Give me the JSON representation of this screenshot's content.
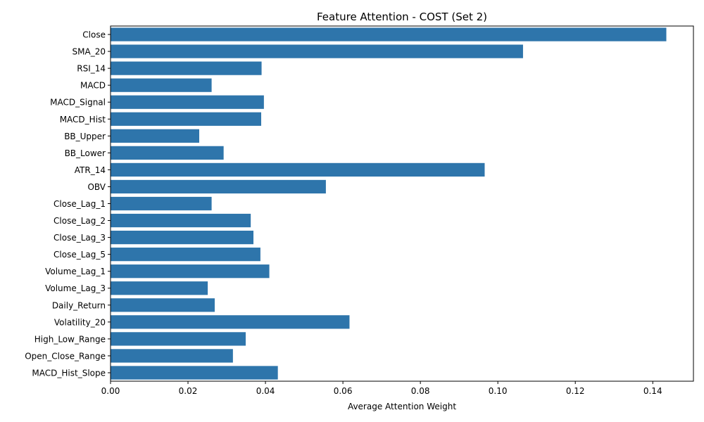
{
  "chart_data": {
    "type": "bar",
    "orientation": "horizontal",
    "title": "Feature Attention - COST (Set 2)",
    "xlabel": "Average Attention Weight",
    "ylabel": "",
    "xlim": [
      0,
      0.1505
    ],
    "xticks": [
      0.0,
      0.02,
      0.04,
      0.06,
      0.08,
      0.1,
      0.12,
      0.14
    ],
    "xtick_labels": [
      "0.00",
      "0.02",
      "0.04",
      "0.06",
      "0.08",
      "0.10",
      "0.12",
      "0.14"
    ],
    "grid": false,
    "bar_color": "#2e75ab",
    "categories": [
      "Close",
      "SMA_20",
      "RSI_14",
      "MACD",
      "MACD_Signal",
      "MACD_Hist",
      "BB_Upper",
      "BB_Lower",
      "ATR_14",
      "OBV",
      "Close_Lag_1",
      "Close_Lag_2",
      "Close_Lag_3",
      "Close_Lag_5",
      "Volume_Lag_1",
      "Volume_Lag_3",
      "Daily_Return",
      "Volatility_20",
      "High_Low_Range",
      "Open_Close_Range",
      "MACD_Hist_Slope"
    ],
    "values": [
      0.1435,
      0.1065,
      0.039,
      0.0261,
      0.0396,
      0.0389,
      0.0229,
      0.0292,
      0.0966,
      0.0556,
      0.0261,
      0.0362,
      0.0369,
      0.0387,
      0.041,
      0.0251,
      0.0269,
      0.0617,
      0.0349,
      0.0316,
      0.0432
    ]
  }
}
